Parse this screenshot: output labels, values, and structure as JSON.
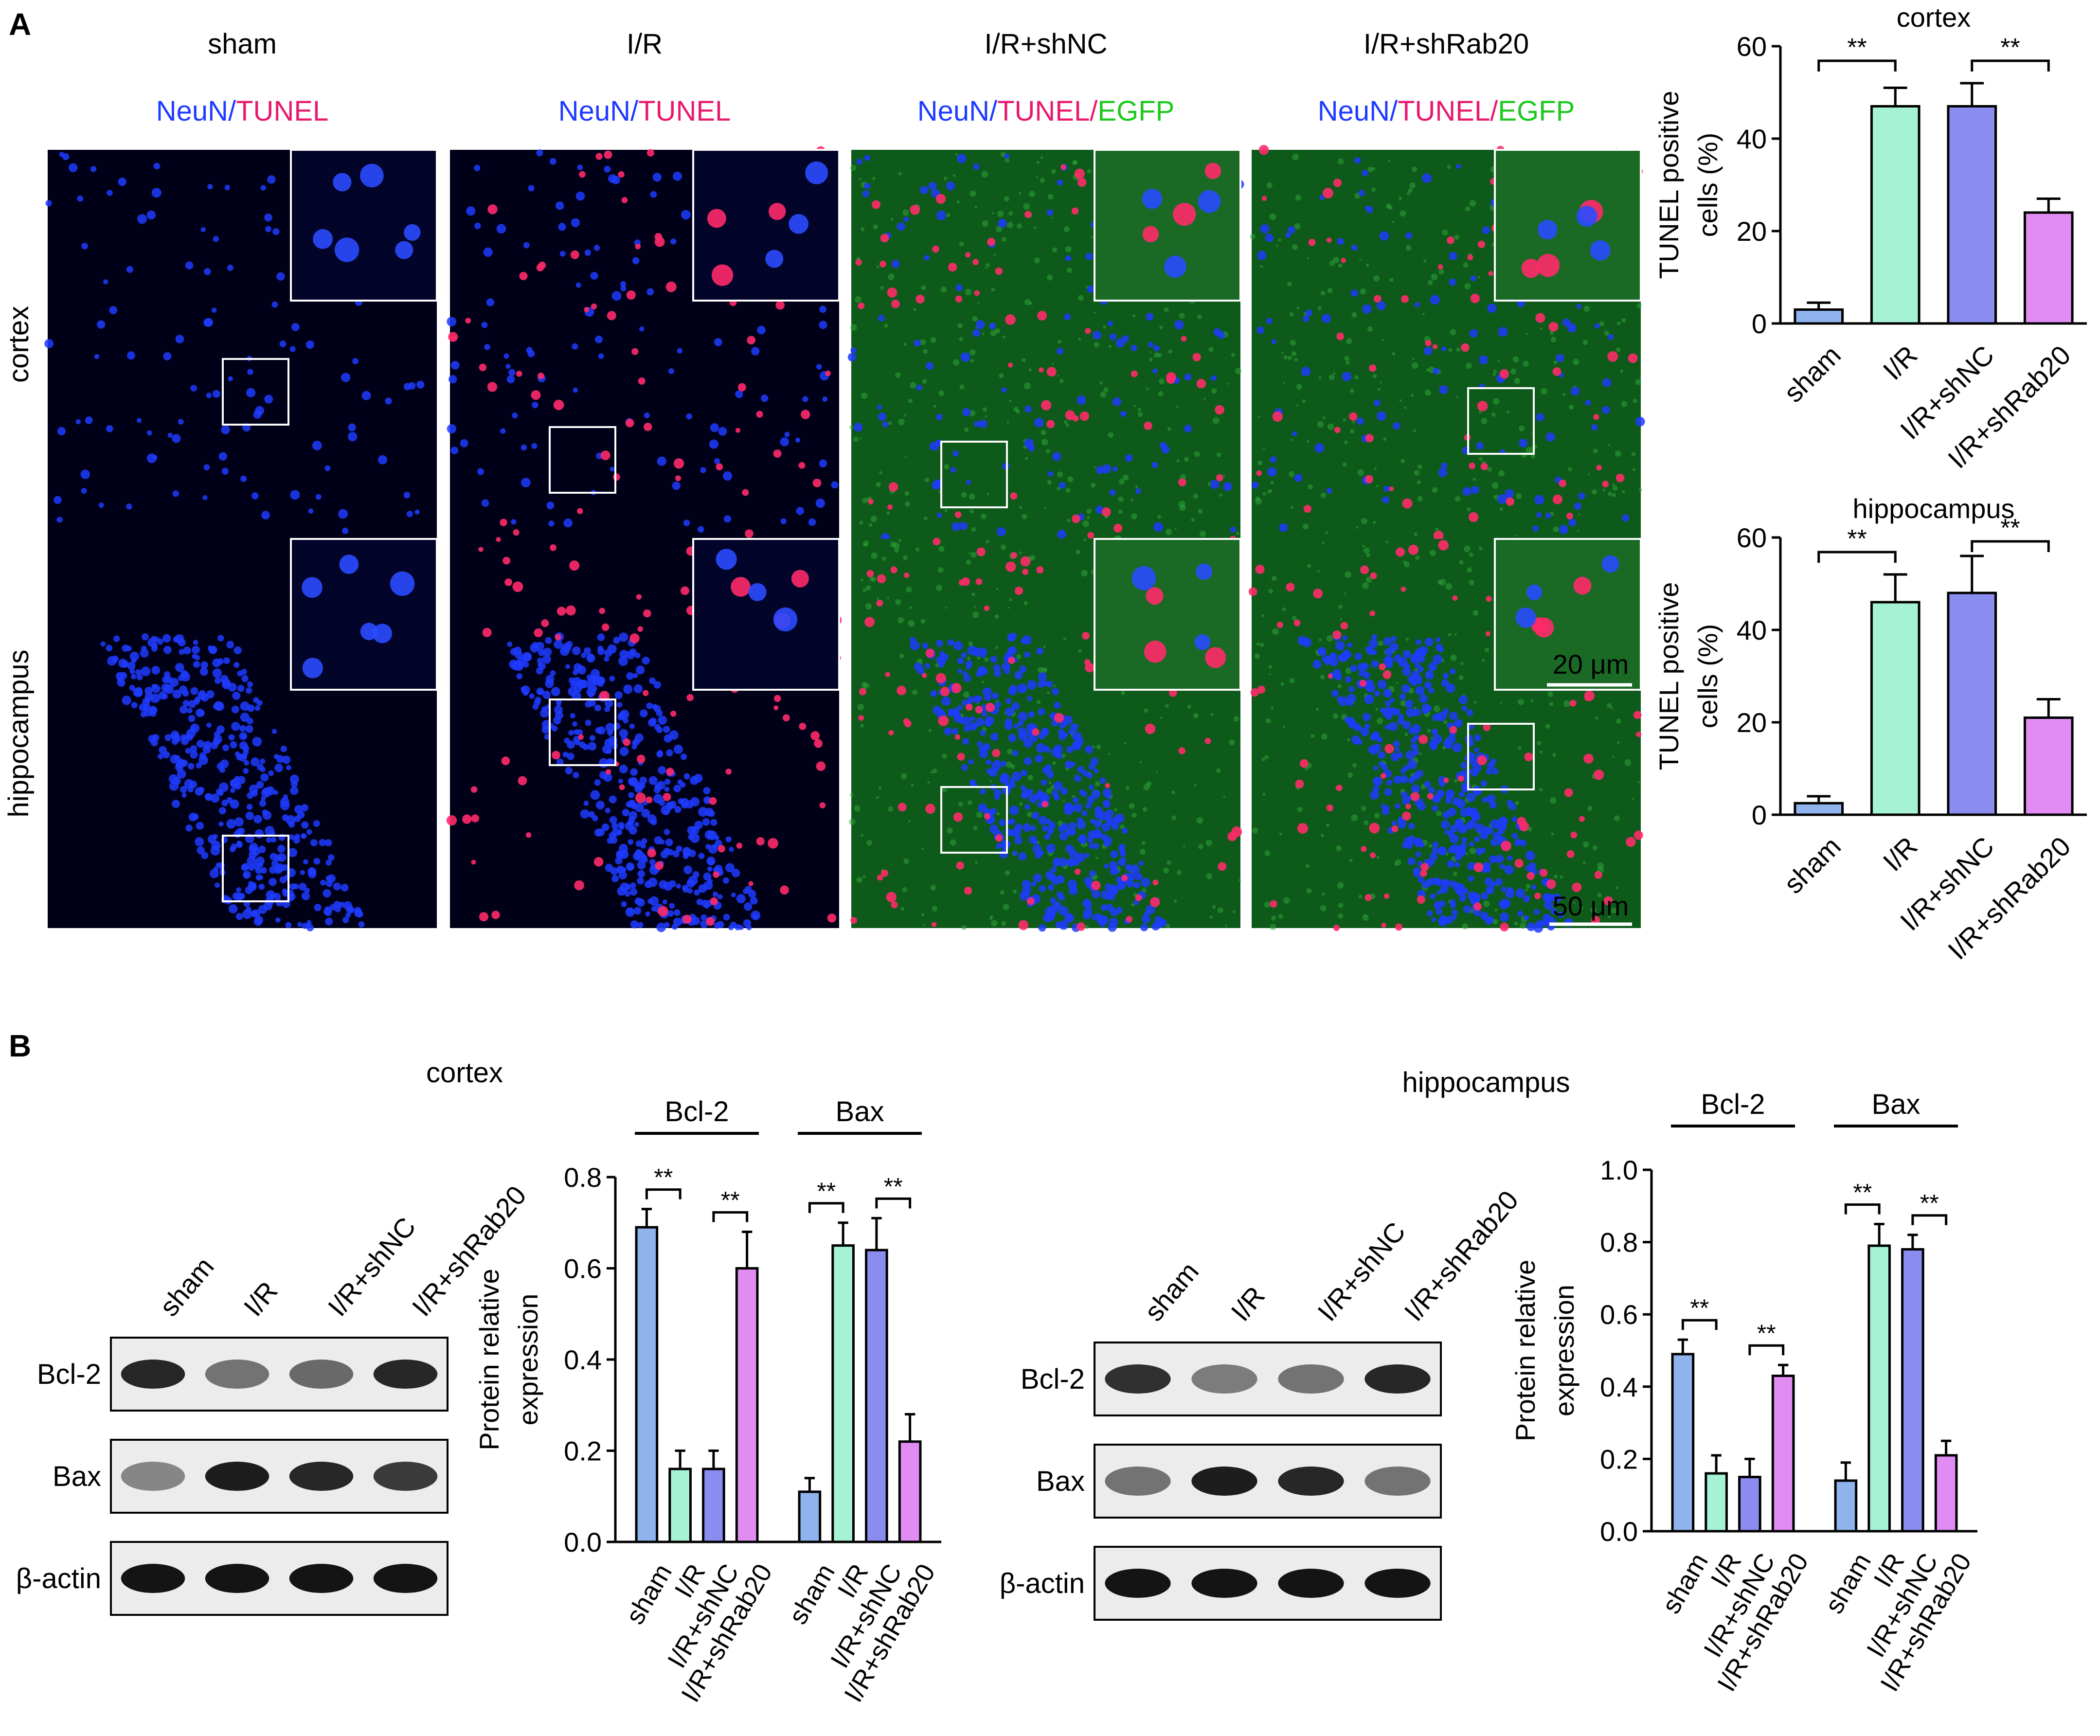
{
  "panel_a": {
    "letter": "A",
    "columns": [
      {
        "title": "sham",
        "stain": [
          {
            "text": "NeuN",
            "color": "#1f3bff"
          },
          {
            "text": "/",
            "color": "#1f3bff"
          },
          {
            "text": "TUNEL",
            "color": "#e8186e"
          }
        ]
      },
      {
        "title": "I/R",
        "stain": [
          {
            "text": "NeuN",
            "color": "#1f3bff"
          },
          {
            "text": "/",
            "color": "#1f3bff"
          },
          {
            "text": "TUNEL",
            "color": "#e8186e"
          }
        ]
      },
      {
        "title": "I/R+shNC",
        "stain": [
          {
            "text": "NeuN",
            "color": "#1f3bff"
          },
          {
            "text": "/",
            "color": "#1f3bff"
          },
          {
            "text": "TUNEL",
            "color": "#e8186e"
          },
          {
            "text": "/",
            "color": "#e8186e"
          },
          {
            "text": "EGFP",
            "color": "#1ec81e"
          }
        ]
      },
      {
        "title": "I/R+shRab20",
        "stain": [
          {
            "text": "NeuN",
            "color": "#1f3bff"
          },
          {
            "text": "/",
            "color": "#1f3bff"
          },
          {
            "text": "TUNEL",
            "color": "#e8186e"
          },
          {
            "text": "/",
            "color": "#e8186e"
          },
          {
            "text": "EGFP",
            "color": "#1ec81e"
          }
        ]
      }
    ],
    "rows": [
      "cortex",
      "hippocampus"
    ],
    "scale_bars": {
      "inset": "20 μm",
      "main": "50 μm"
    }
  },
  "panel_b": {
    "letter": "B",
    "blots": [
      {
        "region": "cortex",
        "lanes": [
          "sham",
          "I/R",
          "I/R+shNC",
          "I/R+shRab20"
        ],
        "bands": [
          "Bcl-2",
          "Bax",
          "β-actin"
        ],
        "intensity": {
          "Bcl-2": [
            0.85,
            0.45,
            0.5,
            0.85
          ],
          "Bax": [
            0.35,
            0.9,
            0.85,
            0.75
          ],
          "β-actin": [
            0.95,
            0.95,
            0.95,
            0.95
          ]
        }
      },
      {
        "region": "hippocampus",
        "lanes": [
          "sham",
          "I/R",
          "I/R+shNC",
          "I/R+shRab20"
        ],
        "bands": [
          "Bcl-2",
          "Bax",
          "β-actin"
        ],
        "intensity": {
          "Bcl-2": [
            0.8,
            0.4,
            0.45,
            0.85
          ],
          "Bax": [
            0.45,
            0.9,
            0.85,
            0.45
          ],
          "β-actin": [
            0.95,
            0.95,
            0.95,
            0.95
          ]
        }
      }
    ]
  },
  "colors": {
    "sham": "#8fb3ec",
    "I/R": "#a6f2d4",
    "I/R+shNC": "#8a8cf0",
    "I/R+shRab20": "#e08cf2",
    "axis": "#000000"
  },
  "chart_data": [
    {
      "type": "bar",
      "title": "cortex",
      "ylabel": "TUNEL positive cells (%)",
      "categories": [
        "sham",
        "I/R",
        "I/R+shNC",
        "I/R+shRab20"
      ],
      "values": [
        3,
        47,
        47,
        24
      ],
      "errors": [
        1.5,
        4,
        5,
        3
      ],
      "ylim": [
        0,
        60
      ],
      "yticks": [
        0,
        20,
        40,
        60
      ],
      "significance": [
        {
          "from": 0,
          "to": 1,
          "label": "**"
        },
        {
          "from": 2,
          "to": 3,
          "label": "**"
        }
      ]
    },
    {
      "type": "bar",
      "title": "hippocampus",
      "ylabel": "TUNEL positive cells (%)",
      "categories": [
        "sham",
        "I/R",
        "I/R+shNC",
        "I/R+shRab20"
      ],
      "values": [
        2.5,
        46,
        48,
        21
      ],
      "errors": [
        1.5,
        6,
        8,
        4
      ],
      "ylim": [
        0,
        60
      ],
      "yticks": [
        0,
        20,
        40,
        60
      ],
      "significance": [
        {
          "from": 0,
          "to": 1,
          "label": "**"
        },
        {
          "from": 2,
          "to": 3,
          "label": "**"
        }
      ]
    },
    {
      "type": "bar",
      "region": "cortex",
      "ylabel": "Protein relative expression",
      "categories": [
        "sham",
        "I/R",
        "I/R+shNC",
        "I/R+shRab20"
      ],
      "ylim": [
        0,
        0.8
      ],
      "yticks": [
        0.0,
        0.2,
        0.4,
        0.6,
        0.8
      ],
      "groups": [
        {
          "name": "Bcl-2",
          "values": [
            0.69,
            0.16,
            0.16,
            0.6
          ],
          "errors": [
            0.04,
            0.04,
            0.04,
            0.08
          ],
          "significance": [
            {
              "from": 0,
              "to": 1,
              "label": "**"
            },
            {
              "from": 2,
              "to": 3,
              "label": "**"
            }
          ]
        },
        {
          "name": "Bax",
          "values": [
            0.11,
            0.65,
            0.64,
            0.22
          ],
          "errors": [
            0.03,
            0.05,
            0.07,
            0.06
          ],
          "significance": [
            {
              "from": 0,
              "to": 1,
              "label": "**"
            },
            {
              "from": 2,
              "to": 3,
              "label": "**"
            }
          ]
        }
      ]
    },
    {
      "type": "bar",
      "region": "hippocampus",
      "ylabel": "Protein relative expression",
      "categories": [
        "sham",
        "I/R",
        "I/R+shNC",
        "I/R+shRab20"
      ],
      "ylim": [
        0,
        1.0
      ],
      "yticks": [
        0.0,
        0.2,
        0.4,
        0.6,
        0.8,
        1.0
      ],
      "groups": [
        {
          "name": "Bcl-2",
          "values": [
            0.49,
            0.16,
            0.15,
            0.43
          ],
          "errors": [
            0.04,
            0.05,
            0.05,
            0.03
          ],
          "significance": [
            {
              "from": 0,
              "to": 1,
              "label": "**"
            },
            {
              "from": 2,
              "to": 3,
              "label": "**"
            }
          ]
        },
        {
          "name": "Bax",
          "values": [
            0.14,
            0.79,
            0.78,
            0.21
          ],
          "errors": [
            0.05,
            0.06,
            0.04,
            0.04
          ],
          "significance": [
            {
              "from": 0,
              "to": 1,
              "label": "**"
            },
            {
              "from": 2,
              "to": 3,
              "label": "**"
            }
          ]
        }
      ]
    }
  ]
}
